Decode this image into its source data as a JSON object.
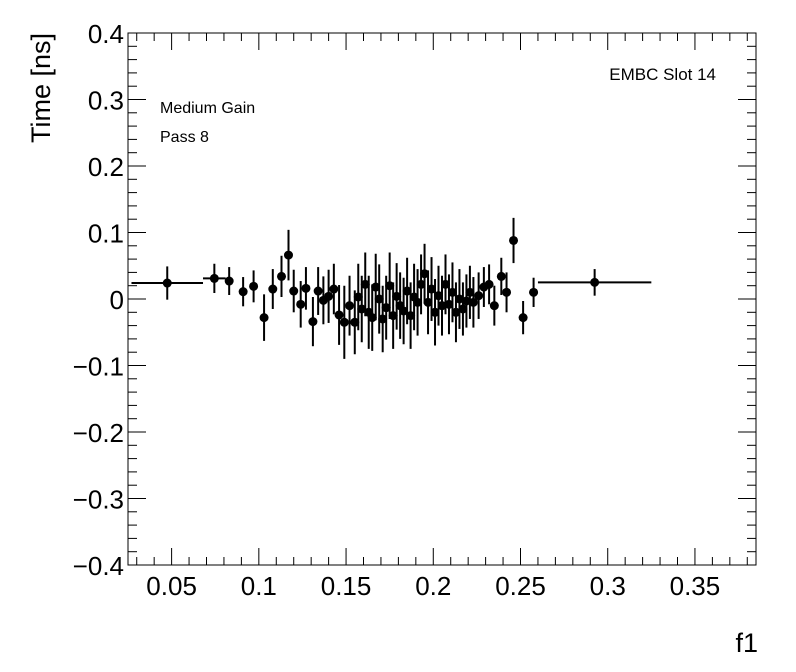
{
  "chart_data": {
    "type": "scatter",
    "title": "",
    "xlabel": "f1",
    "ylabel": "Time [ns]",
    "xlim": [
      0.025,
      0.385
    ],
    "ylim": [
      -0.4,
      0.4
    ],
    "x_ticks": [
      0.05,
      0.1,
      0.15,
      0.2,
      0.25,
      0.3,
      0.35
    ],
    "x_tick_labels": [
      "0.05",
      "0.1",
      "0.15",
      "0.2",
      "0.25",
      "0.3",
      "0.35"
    ],
    "y_ticks": [
      -0.4,
      -0.3,
      -0.2,
      -0.1,
      0,
      0.1,
      0.2,
      0.3,
      0.4
    ],
    "y_tick_labels": [
      "−0.4",
      "−0.3",
      "−0.2",
      "−0.1",
      "0",
      "0.1",
      "0.2",
      "0.3",
      "0.4"
    ],
    "grid": false,
    "legend": "none",
    "annotations": {
      "slot": "EMBC Slot 14",
      "gain": "Medium Gain",
      "pass": "Pass 8"
    },
    "marker_color": "#000000",
    "points": [
      {
        "x": 0.0475,
        "y": 0.024,
        "xerr": 0.0205,
        "yerr": 0.025
      },
      {
        "x": 0.0745,
        "y": 0.031,
        "xerr": 0.0065,
        "yerr": 0.022
      },
      {
        "x": 0.083,
        "y": 0.027,
        "xerr": 0.0,
        "yerr": 0.021
      },
      {
        "x": 0.091,
        "y": 0.011,
        "xerr": 0.0,
        "yerr": 0.022
      },
      {
        "x": 0.097,
        "y": 0.019,
        "xerr": 0.0,
        "yerr": 0.024
      },
      {
        "x": 0.103,
        "y": -0.028,
        "xerr": 0.0,
        "yerr": 0.035
      },
      {
        "x": 0.108,
        "y": 0.015,
        "xerr": 0.0,
        "yerr": 0.03
      },
      {
        "x": 0.113,
        "y": 0.034,
        "xerr": 0.0,
        "yerr": 0.031
      },
      {
        "x": 0.117,
        "y": 0.066,
        "xerr": 0.0,
        "yerr": 0.038
      },
      {
        "x": 0.12,
        "y": 0.012,
        "xerr": 0.0,
        "yerr": 0.032
      },
      {
        "x": 0.124,
        "y": -0.008,
        "xerr": 0.0,
        "yerr": 0.035
      },
      {
        "x": 0.127,
        "y": 0.016,
        "xerr": 0.0,
        "yerr": 0.032
      },
      {
        "x": 0.131,
        "y": -0.034,
        "xerr": 0.0,
        "yerr": 0.037
      },
      {
        "x": 0.134,
        "y": 0.012,
        "xerr": 0.0,
        "yerr": 0.036
      },
      {
        "x": 0.137,
        "y": -0.002,
        "xerr": 0.0,
        "yerr": 0.036
      },
      {
        "x": 0.14,
        "y": 0.004,
        "xerr": 0.0,
        "yerr": 0.04
      },
      {
        "x": 0.143,
        "y": 0.015,
        "xerr": 0.0,
        "yerr": 0.038
      },
      {
        "x": 0.146,
        "y": -0.024,
        "xerr": 0.0,
        "yerr": 0.045
      },
      {
        "x": 0.149,
        "y": -0.035,
        "xerr": 0.0,
        "yerr": 0.055
      },
      {
        "x": 0.152,
        "y": -0.01,
        "xerr": 0.0,
        "yerr": 0.045
      },
      {
        "x": 0.155,
        "y": -0.035,
        "xerr": 0.0,
        "yerr": 0.048
      },
      {
        "x": 0.157,
        "y": 0.003,
        "xerr": 0.0,
        "yerr": 0.05
      },
      {
        "x": 0.159,
        "y": -0.015,
        "xerr": 0.0,
        "yerr": 0.05
      },
      {
        "x": 0.161,
        "y": 0.022,
        "xerr": 0.0,
        "yerr": 0.048
      },
      {
        "x": 0.163,
        "y": -0.02,
        "xerr": 0.0,
        "yerr": 0.055
      },
      {
        "x": 0.165,
        "y": -0.028,
        "xerr": 0.0,
        "yerr": 0.05
      },
      {
        "x": 0.167,
        "y": 0.018,
        "xerr": 0.0,
        "yerr": 0.05
      },
      {
        "x": 0.169,
        "y": 0.0,
        "xerr": 0.0,
        "yerr": 0.052
      },
      {
        "x": 0.171,
        "y": -0.03,
        "xerr": 0.0,
        "yerr": 0.05
      },
      {
        "x": 0.173,
        "y": -0.013,
        "xerr": 0.0,
        "yerr": 0.048
      },
      {
        "x": 0.175,
        "y": 0.02,
        "xerr": 0.0,
        "yerr": 0.05
      },
      {
        "x": 0.177,
        "y": -0.025,
        "xerr": 0.0,
        "yerr": 0.05
      },
      {
        "x": 0.179,
        "y": 0.004,
        "xerr": 0.0,
        "yerr": 0.05
      },
      {
        "x": 0.181,
        "y": -0.01,
        "xerr": 0.0,
        "yerr": 0.05
      },
      {
        "x": 0.183,
        "y": -0.018,
        "xerr": 0.0,
        "yerr": 0.05
      },
      {
        "x": 0.185,
        "y": 0.012,
        "xerr": 0.0,
        "yerr": 0.05
      },
      {
        "x": 0.187,
        "y": -0.025,
        "xerr": 0.0,
        "yerr": 0.05
      },
      {
        "x": 0.189,
        "y": 0.003,
        "xerr": 0.0,
        "yerr": 0.05
      },
      {
        "x": 0.191,
        "y": -0.005,
        "xerr": 0.0,
        "yerr": 0.05
      },
      {
        "x": 0.193,
        "y": 0.022,
        "xerr": 0.0,
        "yerr": 0.045
      },
      {
        "x": 0.195,
        "y": 0.038,
        "xerr": 0.0,
        "yerr": 0.045
      },
      {
        "x": 0.197,
        "y": -0.005,
        "xerr": 0.0,
        "yerr": 0.048
      },
      {
        "x": 0.199,
        "y": 0.015,
        "xerr": 0.0,
        "yerr": 0.048
      },
      {
        "x": 0.201,
        "y": -0.02,
        "xerr": 0.0,
        "yerr": 0.05
      },
      {
        "x": 0.203,
        "y": 0.005,
        "xerr": 0.0,
        "yerr": 0.045
      },
      {
        "x": 0.205,
        "y": -0.01,
        "xerr": 0.0,
        "yerr": 0.045
      },
      {
        "x": 0.207,
        "y": 0.022,
        "xerr": 0.0,
        "yerr": 0.045
      },
      {
        "x": 0.209,
        "y": -0.008,
        "xerr": 0.0,
        "yerr": 0.045
      },
      {
        "x": 0.211,
        "y": 0.01,
        "xerr": 0.0,
        "yerr": 0.045
      },
      {
        "x": 0.213,
        "y": -0.02,
        "xerr": 0.0,
        "yerr": 0.045
      },
      {
        "x": 0.215,
        "y": 0.0,
        "xerr": 0.0,
        "yerr": 0.045
      },
      {
        "x": 0.217,
        "y": -0.015,
        "xerr": 0.0,
        "yerr": 0.04
      },
      {
        "x": 0.219,
        "y": -0.003,
        "xerr": 0.0,
        "yerr": 0.04
      },
      {
        "x": 0.221,
        "y": 0.01,
        "xerr": 0.0,
        "yerr": 0.04
      },
      {
        "x": 0.223,
        "y": -0.005,
        "xerr": 0.0,
        "yerr": 0.038
      },
      {
        "x": 0.226,
        "y": 0.005,
        "xerr": 0.0,
        "yerr": 0.035
      },
      {
        "x": 0.229,
        "y": 0.018,
        "xerr": 0.0,
        "yerr": 0.03
      },
      {
        "x": 0.232,
        "y": 0.022,
        "xerr": 0.0,
        "yerr": 0.03
      },
      {
        "x": 0.235,
        "y": -0.01,
        "xerr": 0.0,
        "yerr": 0.03
      },
      {
        "x": 0.239,
        "y": 0.034,
        "xerr": 0.0,
        "yerr": 0.028
      },
      {
        "x": 0.242,
        "y": 0.01,
        "xerr": 0.0,
        "yerr": 0.03
      },
      {
        "x": 0.246,
        "y": 0.088,
        "xerr": 0.0,
        "yerr": 0.034
      },
      {
        "x": 0.2515,
        "y": -0.028,
        "xerr": 0.0,
        "yerr": 0.025
      },
      {
        "x": 0.2575,
        "y": 0.01,
        "xerr": 0.0025,
        "yerr": 0.022
      },
      {
        "x": 0.2925,
        "y": 0.025,
        "xerr": 0.0325,
        "yerr": 0.02
      }
    ]
  }
}
